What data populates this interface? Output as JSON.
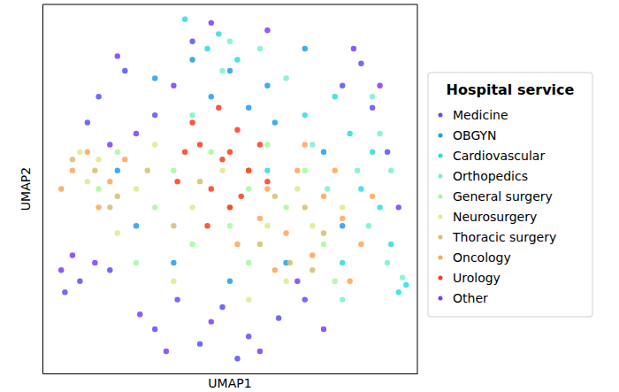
{
  "chart_data": {
    "type": "scatter",
    "x_label": "UMAP1",
    "y_label": "UMAP2",
    "legend_title": "Hospital service",
    "xlim": [
      0,
      100
    ],
    "ylim": [
      0,
      100
    ],
    "xticks": [],
    "yticks": [],
    "tick_labels": false,
    "grid": false,
    "legend": "right",
    "marker": "circle",
    "series": [
      {
        "name": "Medicine",
        "color": "#5a4ffb",
        "x": [
          30,
          42,
          55,
          63,
          48,
          36,
          15,
          22,
          30,
          12,
          80,
          85,
          88,
          10,
          18,
          70,
          52,
          40,
          6,
          92
        ],
        "values": [
          12,
          8,
          10,
          15,
          18,
          20,
          75,
          82,
          70,
          68,
          78,
          84,
          72,
          25,
          28,
          20,
          4,
          90,
          22,
          60
        ]
      },
      {
        "name": "OBGYN",
        "color": "#1e9cf0",
        "x": [
          30,
          40,
          50,
          60,
          70,
          55,
          45,
          20,
          75,
          65,
          50,
          35,
          80,
          25,
          62
        ],
        "values": [
          80,
          85,
          82,
          78,
          88,
          72,
          75,
          55,
          60,
          30,
          25,
          30,
          40,
          40,
          68
        ]
      },
      {
        "name": "Cardiovascular",
        "color": "#2adddd",
        "x": [
          85,
          90,
          93,
          88,
          80,
          95,
          97,
          82,
          47,
          44,
          52,
          78,
          60,
          70,
          38
        ],
        "values": [
          50,
          45,
          35,
          60,
          30,
          22,
          24,
          65,
          92,
          88,
          85,
          75,
          55,
          70,
          96
        ]
      },
      {
        "name": "Orthopedics",
        "color": "#7af0d0",
        "x": [
          87,
          92,
          84,
          90,
          76,
          96,
          80,
          72,
          50,
          48,
          65,
          88,
          58,
          40,
          93
        ],
        "values": [
          40,
          30,
          55,
          65,
          50,
          26,
          20,
          62,
          90,
          82,
          80,
          75,
          88,
          70,
          55
        ]
      },
      {
        "name": "General surgery",
        "color": "#a8f8a0",
        "x": [
          35,
          45,
          55,
          65,
          30,
          75,
          25,
          60,
          50,
          40,
          20,
          70,
          15,
          78,
          55
        ],
        "values": [
          55,
          60,
          50,
          45,
          45,
          35,
          30,
          62,
          40,
          35,
          60,
          55,
          50,
          25,
          30
        ]
      },
      {
        "name": "Neurosurgery",
        "color": "#e0e890",
        "x": [
          10,
          15,
          25,
          40,
          60,
          68,
          72,
          35,
          55,
          80,
          20,
          48,
          65,
          30,
          12
        ],
        "values": [
          60,
          58,
          50,
          45,
          40,
          50,
          40,
          25,
          20,
          45,
          38,
          55,
          25,
          62,
          52
        ]
      },
      {
        "name": "Thoracic surgery",
        "color": "#d4c070",
        "x": [
          8,
          14,
          20,
          62,
          70,
          75,
          58,
          66,
          50,
          42,
          35,
          72,
          28,
          18,
          55
        ],
        "values": [
          58,
          55,
          48,
          48,
          45,
          38,
          35,
          30,
          45,
          52,
          40,
          28,
          55,
          45,
          55
        ]
      },
      {
        "name": "Oncology",
        "color": "#ffa457",
        "x": [
          60,
          68,
          75,
          80,
          65,
          72,
          78,
          85,
          62,
          70,
          58,
          8,
          12,
          18,
          5,
          22,
          15,
          52,
          82,
          88
        ],
        "values": [
          50,
          55,
          48,
          42,
          38,
          32,
          55,
          35,
          28,
          62,
          42,
          55,
          60,
          52,
          50,
          58,
          45,
          35,
          25,
          48
        ]
      },
      {
        "name": "Urology",
        "color": "#ff3a1a",
        "x": [
          42,
          48,
          52,
          45,
          55,
          38,
          50,
          58,
          40,
          47,
          53,
          44,
          60,
          36,
          50
        ],
        "values": [
          62,
          58,
          66,
          50,
          55,
          60,
          45,
          62,
          68,
          72,
          48,
          40,
          52,
          52,
          60
        ]
      },
      {
        "name": "Other",
        "color": "#7a3cff",
        "x": [
          26,
          45,
          58,
          68,
          20,
          35,
          25,
          83,
          90,
          14,
          8,
          60,
          45,
          75,
          33,
          5,
          18,
          95
        ],
        "values": [
          16,
          14,
          6,
          25,
          86,
          78,
          65,
          88,
          78,
          30,
          32,
          93,
          95,
          12,
          6,
          28,
          62,
          45
        ]
      }
    ]
  }
}
